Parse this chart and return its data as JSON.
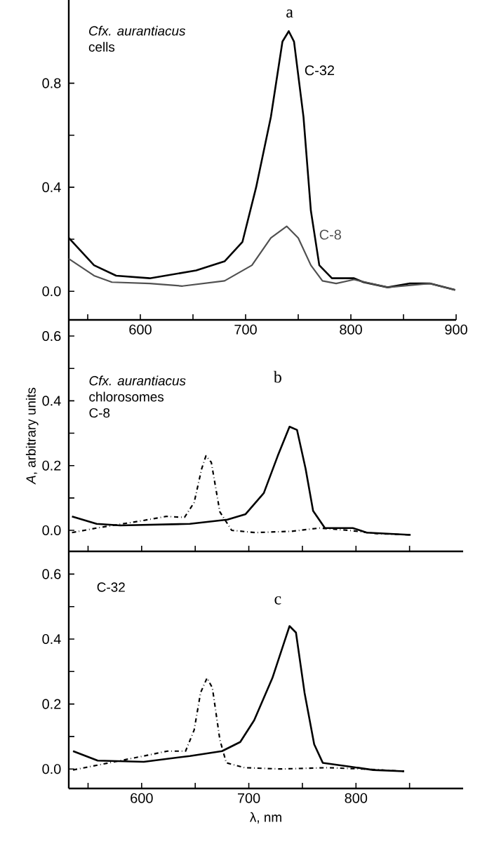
{
  "chart_data": [
    {
      "type": "line",
      "title": "a",
      "annotations": [
        "*Cfx. aurantiacus*",
        "cells"
      ],
      "xlim": [
        532,
        900
      ],
      "ylim": [
        -0.11,
        1.12
      ],
      "xticks": [
        {
          "value": 550,
          "label": null
        },
        600,
        {
          "value": 650,
          "label": null
        },
        700,
        {
          "value": 750,
          "label": null
        },
        800,
        {
          "value": 850,
          "label": null
        },
        900
      ],
      "yticks": [
        {
          "value": 0,
          "label": "0.0"
        },
        {
          "value": 0.2,
          "label": null
        },
        0.4,
        {
          "value": 0.6,
          "label": null
        },
        0.8
      ],
      "grid": false,
      "marker": "none",
      "series": [
        {
          "name": "C-32",
          "color": "#000000",
          "line_style": "solid",
          "x": [
            532,
            556,
            577,
            609,
            653,
            680,
            697,
            710,
            724,
            735,
            741,
            746,
            755,
            762,
            770,
            782,
            803,
            812,
            835,
            856,
            875,
            899
          ],
          "values": [
            0.205,
            0.1,
            0.06,
            0.05,
            0.08,
            0.115,
            0.19,
            0.4,
            0.67,
            0.96,
            1.0,
            0.96,
            0.67,
            0.31,
            0.1,
            0.05,
            0.05,
            0.035,
            0.015,
            0.03,
            0.03,
            0.005
          ]
        },
        {
          "name": "C-8",
          "color": "#505050",
          "line_style": "solid",
          "x": [
            532,
            556,
            573,
            609,
            640,
            680,
            706,
            724,
            739,
            750,
            762,
            773,
            786,
            803,
            835,
            875,
            899
          ],
          "values": [
            0.125,
            0.06,
            0.035,
            0.03,
            0.02,
            0.04,
            0.1,
            0.205,
            0.25,
            0.205,
            0.1,
            0.04,
            0.03,
            0.045,
            0.015,
            0.03,
            0.005
          ]
        }
      ]
    },
    {
      "type": "line",
      "title": "b",
      "ylabel": "*A*, arbitrary units",
      "annotations": [
        "*Cfx. aurantiacus*",
        "chlorosomes",
        "C-8"
      ],
      "xlim": [
        532,
        900
      ],
      "ylim": [
        -0.065,
        0.65
      ],
      "tick_labels": "y",
      "xticks": [
        {
          "value": 550,
          "label": null
        },
        600,
        {
          "value": 650,
          "label": null
        },
        700,
        {
          "value": 750,
          "label": null
        },
        800,
        {
          "value": 850,
          "label": null
        }
      ],
      "yticks": [
        {
          "value": 0,
          "label": "0.0"
        },
        {
          "value": 0.1,
          "label": null
        },
        0.2,
        {
          "value": 0.3,
          "label": null
        },
        0.4,
        {
          "value": 0.5,
          "label": null
        },
        0.6
      ],
      "grid": false,
      "marker": "none",
      "series": [
        {
          "color": "#000000",
          "line_style": "solid",
          "x": [
            535,
            558,
            580,
            645,
            680,
            697,
            714,
            727,
            738,
            745,
            753,
            760,
            771,
            797,
            810,
            851
          ],
          "values": [
            0.043,
            0.02,
            0.015,
            0.02,
            0.033,
            0.05,
            0.115,
            0.23,
            0.32,
            0.31,
            0.19,
            0.06,
            0.007,
            0.007,
            -0.007,
            -0.014
          ]
        },
        {
          "color": "#000000",
          "line_style": "dashdot",
          "x": [
            535,
            558,
            601,
            623,
            640,
            649,
            656,
            660,
            665,
            673,
            684,
            706,
            740,
            766,
            793,
            819,
            851
          ],
          "values": [
            -0.007,
            0.007,
            0.03,
            0.043,
            0.04,
            0.086,
            0.19,
            0.23,
            0.21,
            0.057,
            0.0,
            -0.007,
            -0.003,
            0.007,
            0.0,
            -0.01,
            -0.014
          ]
        }
      ]
    },
    {
      "type": "line",
      "title": "c",
      "xlabel": "λ, nm",
      "annotations": [
        "C-32"
      ],
      "xlim": [
        532,
        900
      ],
      "ylim": [
        -0.06,
        0.67
      ],
      "xticks": [
        {
          "value": 550,
          "label": null
        },
        600,
        {
          "value": 650,
          "label": null
        },
        700,
        {
          "value": 750,
          "label": null
        },
        800,
        {
          "value": 850,
          "label": null
        }
      ],
      "yticks": [
        {
          "value": 0,
          "label": "0.0"
        },
        {
          "value": 0.1,
          "label": null
        },
        0.2,
        {
          "value": 0.3,
          "label": null
        },
        0.4,
        {
          "value": 0.5,
          "label": null
        },
        0.6
      ],
      "grid": false,
      "marker": "none",
      "series": [
        {
          "color": "#000000",
          "line_style": "solid",
          "x": [
            536,
            559,
            602,
            645,
            675,
            692,
            705,
            722,
            733,
            738,
            744,
            752,
            761,
            769,
            795,
            816,
            845
          ],
          "values": [
            0.055,
            0.026,
            0.022,
            0.04,
            0.055,
            0.083,
            0.15,
            0.28,
            0.39,
            0.44,
            0.42,
            0.235,
            0.076,
            0.019,
            0.007,
            -0.003,
            -0.007
          ]
        },
        {
          "color": "#000000",
          "line_style": "dashdot",
          "x": [
            536,
            559,
            602,
            624,
            641,
            649,
            655,
            661,
            666,
            673,
            679,
            696,
            730,
            773,
            807,
            845
          ],
          "values": [
            -0.003,
            0.012,
            0.04,
            0.055,
            0.055,
            0.12,
            0.235,
            0.28,
            0.25,
            0.09,
            0.019,
            0.004,
            0.0,
            0.004,
            0.0,
            -0.007
          ]
        }
      ]
    }
  ]
}
